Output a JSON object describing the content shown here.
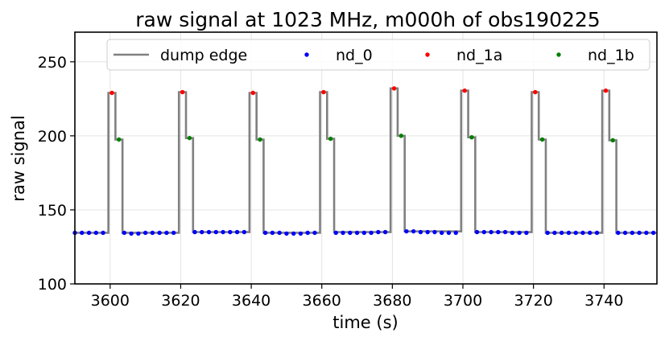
{
  "chart_data": {
    "type": "line",
    "title": "raw signal at 1023 MHz, m000h of obs190225",
    "xlabel": "time (s)",
    "ylabel": "raw signal",
    "xlim": [
      3590,
      3755
    ],
    "ylim": [
      100,
      270
    ],
    "xticks": [
      3600,
      3620,
      3640,
      3660,
      3680,
      3700,
      3720,
      3740
    ],
    "yticks": [
      100,
      150,
      200,
      250
    ],
    "grid": true,
    "legend_placement": "top",
    "legend": [
      "dump edge",
      "nd_0",
      "nd_1a",
      "nd_1b"
    ],
    "colors": {
      "dump_edge": "#808080",
      "nd_0": "#0000ff",
      "nd_1a": "#ff0000",
      "nd_1b": "#008000"
    },
    "dump_edge_step": {
      "x": [
        3590,
        3599.5,
        3599.5,
        3601.5,
        3601.5,
        3603.5,
        3603.5,
        3619.5,
        3619.5,
        3621.5,
        3621.5,
        3623.5,
        3623.5,
        3639.5,
        3639.5,
        3641.5,
        3641.5,
        3643.5,
        3643.5,
        3659.5,
        3659.5,
        3661.5,
        3661.5,
        3663.5,
        3663.5,
        3679.5,
        3679.5,
        3681.5,
        3681.5,
        3683.5,
        3683.5,
        3699.5,
        3699.5,
        3701.5,
        3701.5,
        3703.5,
        3703.5,
        3719.5,
        3719.5,
        3721.5,
        3721.5,
        3723.5,
        3723.5,
        3739.5,
        3739.5,
        3741.5,
        3741.5,
        3743.5,
        3743.5,
        3755
      ],
      "y": [
        134.5,
        134.5,
        229,
        229,
        197.5,
        197.5,
        134.5,
        134.5,
        229.5,
        229.5,
        198.5,
        198.5,
        135,
        135,
        229,
        229,
        197.5,
        197.5,
        134.5,
        134.5,
        229.5,
        229.5,
        198,
        198,
        135,
        135,
        232,
        232,
        200,
        200,
        135.5,
        135.5,
        230.5,
        230.5,
        199,
        199,
        135,
        135,
        229.5,
        229.5,
        197.5,
        197.5,
        134.5,
        134.5,
        230.5,
        230.5,
        197,
        197,
        134.5,
        134.5
      ]
    },
    "nd_0": {
      "x": [
        3590,
        3592,
        3594,
        3596,
        3598,
        3604,
        3606,
        3608,
        3610,
        3612,
        3614,
        3616,
        3618,
        3624,
        3626,
        3628,
        3630,
        3632,
        3634,
        3636,
        3638,
        3644,
        3646,
        3648,
        3650,
        3652,
        3654,
        3656,
        3658,
        3664,
        3666,
        3668,
        3670,
        3672,
        3674,
        3676,
        3678,
        3684,
        3686,
        3688,
        3690,
        3692,
        3694,
        3696,
        3698,
        3704,
        3706,
        3708,
        3710,
        3712,
        3714,
        3716,
        3718,
        3724,
        3726,
        3728,
        3730,
        3732,
        3734,
        3736,
        3738,
        3744,
        3746,
        3748,
        3750,
        3752,
        3754
      ],
      "y": [
        134.5,
        134.5,
        134.5,
        134.5,
        134.5,
        134.5,
        134,
        134,
        134.5,
        134.5,
        134.5,
        134.5,
        134.5,
        135,
        135,
        135,
        135,
        135,
        135,
        135,
        135,
        134.5,
        134.5,
        134.5,
        134,
        134,
        134,
        134.5,
        134.5,
        134.5,
        134.5,
        134.5,
        134.5,
        134.5,
        134.5,
        135,
        135,
        135.5,
        135.5,
        135,
        135,
        135,
        134.5,
        134.5,
        134.5,
        135,
        135,
        135,
        135,
        135,
        134.5,
        134.5,
        134.5,
        134.5,
        134.5,
        134.5,
        134.5,
        134.5,
        134.5,
        134.5,
        134.5,
        134.5,
        134.5,
        134.5,
        134.5,
        134.5,
        134.5
      ]
    },
    "nd_1a": {
      "x": [
        3600.5,
        3620.5,
        3640.5,
        3660.5,
        3680.5,
        3700.5,
        3720.5,
        3740.5
      ],
      "y": [
        229,
        229.5,
        229,
        229.5,
        232,
        230.5,
        229.5,
        230.5
      ]
    },
    "nd_1b": {
      "x": [
        3602.5,
        3622.5,
        3642.5,
        3662.5,
        3682.5,
        3702.5,
        3722.5,
        3742.5
      ],
      "y": [
        197.5,
        198.5,
        197.5,
        198,
        200,
        199,
        197.5,
        197
      ]
    }
  }
}
